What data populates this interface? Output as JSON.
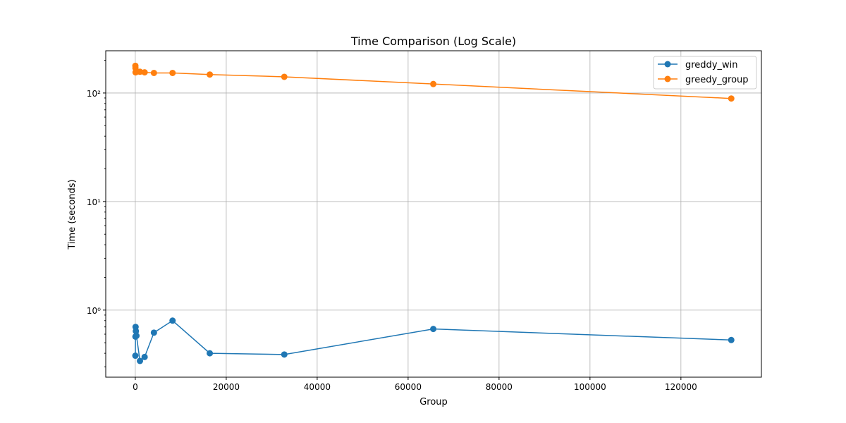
{
  "chart_data": {
    "type": "line",
    "title": "Time Comparison (Log Scale)",
    "xlabel": "Group",
    "ylabel": "Time (seconds)",
    "xlim": [
      -6500,
      137700
    ],
    "ylim": [
      0.241,
      245
    ],
    "yscale": "log",
    "grid": true,
    "legend_position": "top-right",
    "x_ticks": [
      0,
      20000,
      40000,
      60000,
      80000,
      100000,
      120000
    ],
    "x_tick_labels": [
      "0",
      "20000",
      "40000",
      "60000",
      "80000",
      "100000",
      "120000"
    ],
    "y_ticks": [
      1,
      10,
      100
    ],
    "y_tick_labels": [
      "10⁰",
      "10¹",
      "10²"
    ],
    "x": [
      16,
      32,
      64,
      128,
      256,
      1024,
      2048,
      4096,
      8192,
      16384,
      32768,
      65536,
      131072
    ],
    "series": [
      {
        "name": "greddy_win",
        "color": "#1f77b4",
        "values": [
          0.38,
          0.57,
          0.7,
          0.64,
          0.58,
          0.34,
          0.37,
          0.62,
          0.8,
          0.4,
          0.39,
          0.67,
          0.53
        ]
      },
      {
        "name": "greedy_group",
        "color": "#ff7f0e",
        "values": [
          178,
          170,
          155,
          156,
          157,
          157,
          155,
          153,
          153,
          148,
          141,
          121,
          89
        ]
      }
    ]
  }
}
